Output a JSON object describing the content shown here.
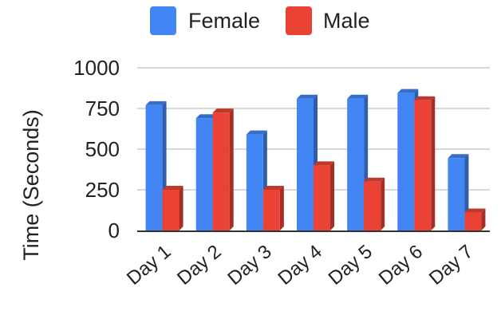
{
  "chart_data": {
    "type": "bar",
    "categories": [
      "Day 1",
      "Day 2",
      "Day 3",
      "Day 4",
      "Day 5",
      "Day 6",
      "Day 7"
    ],
    "series": [
      {
        "name": "Female",
        "color": "#4285f4",
        "values": [
          770,
          690,
          590,
          810,
          810,
          845,
          445
        ]
      },
      {
        "name": "Male",
        "color": "#ea4335",
        "values": [
          250,
          725,
          250,
          400,
          300,
          800,
          110
        ]
      }
    ],
    "title": "",
    "xlabel": "",
    "ylabel": "Time (Seconds)",
    "ylim": [
      0,
      1000
    ],
    "yticks": [
      0,
      250,
      500,
      750,
      1000
    ],
    "ytick_labels": [
      "0",
      "250",
      "500",
      "750",
      "1000"
    ],
    "grid": true,
    "legend_position": "top",
    "style": "3d-bar"
  }
}
